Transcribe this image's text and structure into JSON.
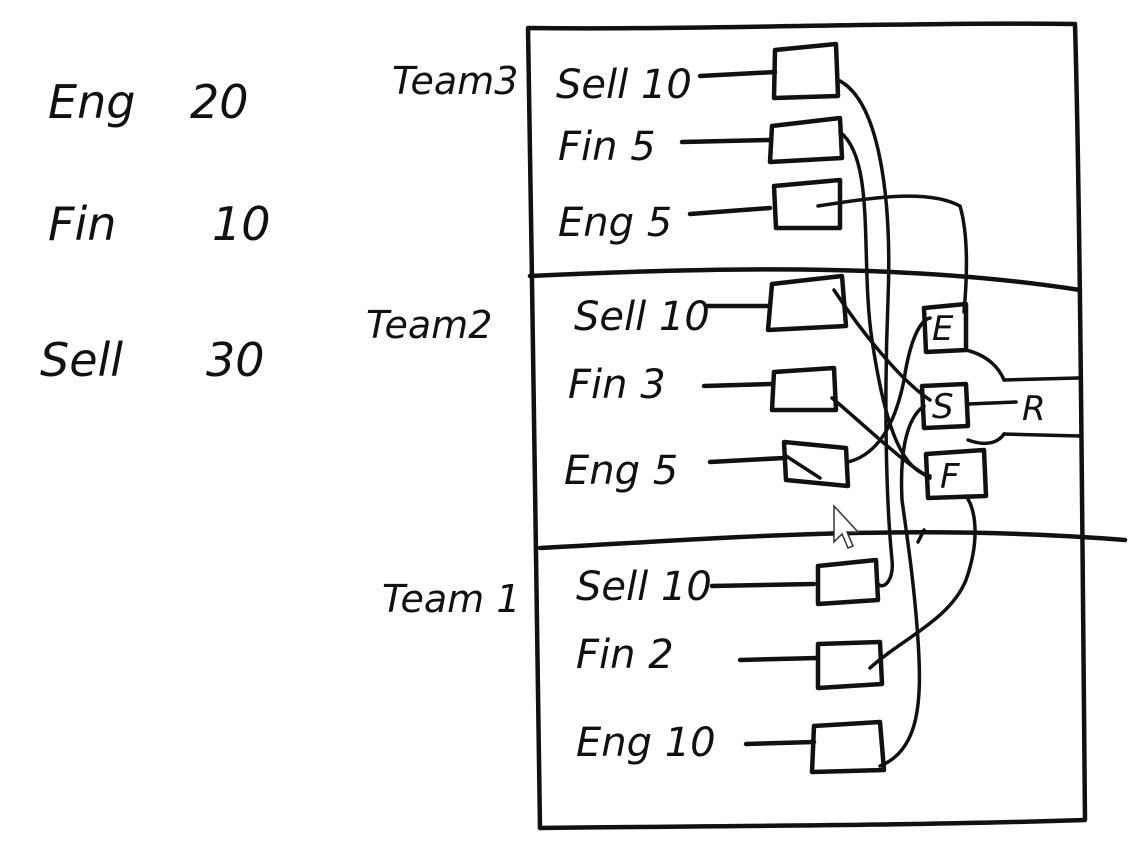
{
  "totals": [
    {
      "dept": "Eng",
      "count": "20"
    },
    {
      "dept": "Fin",
      "count": "10"
    },
    {
      "dept": "Sell",
      "count": "30"
    }
  ],
  "teams": [
    {
      "name": "Team3",
      "rows": [
        {
          "label": "Sell 10"
        },
        {
          "label": "Fin 5"
        },
        {
          "label": "Eng 5"
        }
      ]
    },
    {
      "name": "Team2",
      "rows": [
        {
          "label": "Sell 10"
        },
        {
          "label": "Fin 3"
        },
        {
          "label": "Eng 5"
        }
      ]
    },
    {
      "name": "Team 1",
      "rows": [
        {
          "label": "Sell 10"
        },
        {
          "label": "Fin 2"
        },
        {
          "label": "Eng 10"
        }
      ]
    }
  ],
  "nodes": {
    "e": "E",
    "s": "S",
    "f": "F",
    "r": "R"
  },
  "colors": {
    "ink": "#111111",
    "background": "#ffffff"
  }
}
